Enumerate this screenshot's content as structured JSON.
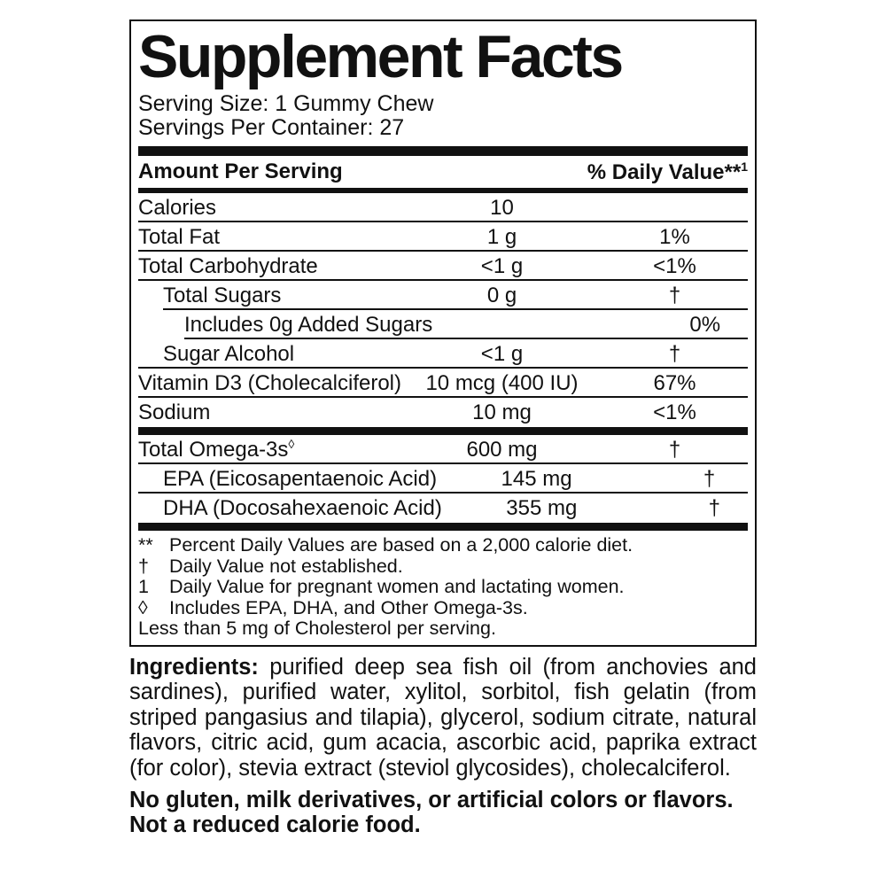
{
  "colors": {
    "ink": "#111111",
    "background": "#ffffff"
  },
  "title": "Supplement Facts",
  "serving": {
    "serving_size": "Serving Size: 1 Gummy Chew",
    "servings_per_container": "Servings Per Container: 27"
  },
  "table": {
    "amount_header": "Amount Per Serving",
    "dv_header": "% Daily Value**",
    "dv_header_sup": "1",
    "rows": [
      {
        "name": "Calories",
        "name_sup": "",
        "amount": "10",
        "dv": "",
        "indent": 0,
        "sep": "full"
      },
      {
        "name": "Total Fat",
        "name_sup": "",
        "amount": "1 g",
        "dv": "1%",
        "indent": 0,
        "sep": "full"
      },
      {
        "name": "Total Carbohydrate",
        "name_sup": "",
        "amount": "<1 g",
        "dv": "<1%",
        "indent": 0,
        "sep": "full"
      },
      {
        "name": "Total Sugars",
        "name_sup": "",
        "amount": "0 g",
        "dv": "†",
        "indent": 1,
        "sep": "indent1"
      },
      {
        "name": "Includes 0g Added Sugars",
        "name_sup": "",
        "amount": "",
        "dv": "0%",
        "indent": 2,
        "sep": "indent2"
      },
      {
        "name": "Sugar Alcohol",
        "name_sup": "",
        "amount": "<1 g",
        "dv": "†",
        "indent": 1,
        "sep": "full"
      },
      {
        "name": "Vitamin D3 (Cholecalciferol)",
        "name_sup": "",
        "amount": "10 mcg (400 IU)",
        "dv": "67%",
        "indent": 0,
        "sep": "full"
      },
      {
        "name": "Sodium",
        "name_sup": "",
        "amount": "10 mg",
        "dv": "<1%",
        "indent": 0,
        "sep": "none",
        "bar_after": "thick"
      },
      {
        "name": "Total Omega-3s",
        "name_sup": "◊",
        "amount": "600 mg",
        "dv": "†",
        "indent": 0,
        "sep": "full"
      },
      {
        "name": "EPA (Eicosapentaenoic Acid)",
        "name_sup": "",
        "amount": "145 mg",
        "dv": "†",
        "indent": 1,
        "sep": "full"
      },
      {
        "name": "DHA (Docosahexaenoic Acid)",
        "name_sup": "",
        "amount": "355 mg",
        "dv": "†",
        "indent": 1,
        "sep": "none",
        "bar_after": "thick"
      }
    ]
  },
  "footnotes": [
    {
      "symbol": "**",
      "text": "Percent Daily Values are based on a 2,000 calorie diet."
    },
    {
      "symbol": "†",
      "text": "Daily Value not established."
    },
    {
      "symbol": "1",
      "text": "Daily Value for pregnant women and lactating women."
    },
    {
      "symbol": "◊",
      "text": "Includes EPA, DHA, and Other Omega-3s."
    }
  ],
  "footnote_plain": "Less than 5 mg of Cholesterol per serving.",
  "ingredients": {
    "label": "Ingredients:",
    "text": "purified deep sea fish oil (from anchovies and sardines), purified water, xylitol, sorbitol, fish gelatin (from striped pangasius and tilapia), glycerol, sodium citrate, natural flavors, citric acid, gum acacia, ascorbic acid, paprika extract (for color), stevia extract (steviol glycosides), cholecalciferol."
  },
  "claims": [
    "No gluten, milk derivatives, or artificial colors or flavors.",
    "Not a reduced calorie food."
  ]
}
